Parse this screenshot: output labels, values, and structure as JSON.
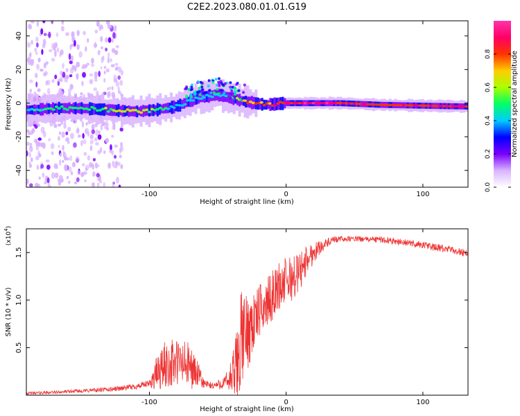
{
  "title": "C2E2.2023.080.01.01.G19",
  "chart_data": [
    {
      "type": "heatmap",
      "xlabel": "Height of straight line (km)",
      "ylabel": "Frequency (Hz)",
      "xlim": [
        -190,
        133
      ],
      "ylim": [
        -50,
        49
      ],
      "xticks": [
        -100,
        0,
        100
      ],
      "yticks": [
        -40,
        -20,
        0,
        20,
        40
      ],
      "colorbar": {
        "label": "Normalized spectral amplitude",
        "range": [
          0,
          1
        ],
        "ticks": [
          0.0,
          0.2,
          0.4,
          0.6,
          0.8
        ],
        "colors": [
          "#ffffff",
          "#d9b3ff",
          "#7a00ff",
          "#0000ff",
          "#00ccff",
          "#00ff66",
          "#aaff00",
          "#ffcc00",
          "#ff3300",
          "#ff0066",
          "#ff33aa"
        ]
      },
      "ridge": [
        {
          "x": -185,
          "y": -4,
          "amp": 0.45
        },
        {
          "x": -170,
          "y": -3,
          "amp": 0.55
        },
        {
          "x": -150,
          "y": -3,
          "amp": 0.5
        },
        {
          "x": -130,
          "y": -4,
          "amp": 0.6
        },
        {
          "x": -110,
          "y": -5,
          "amp": 0.75
        },
        {
          "x": -95,
          "y": -4,
          "amp": 0.55
        },
        {
          "x": -80,
          "y": -2,
          "amp": 0.45
        },
        {
          "x": -65,
          "y": 3,
          "amp": 0.4
        },
        {
          "x": -50,
          "y": 5,
          "amp": 0.45
        },
        {
          "x": -40,
          "y": 3,
          "amp": 0.5
        },
        {
          "x": -30,
          "y": 1,
          "amp": 0.8
        },
        {
          "x": -15,
          "y": -1,
          "amp": 0.85
        },
        {
          "x": 0,
          "y": 0,
          "amp": 0.9
        },
        {
          "x": 15,
          "y": 0,
          "amp": 1.0
        },
        {
          "x": 40,
          "y": 0,
          "amp": 0.95
        },
        {
          "x": 70,
          "y": -1,
          "amp": 0.85
        },
        {
          "x": 100,
          "y": -1.5,
          "amp": 0.9
        },
        {
          "x": 133,
          "y": -2,
          "amp": 0.95
        }
      ]
    },
    {
      "type": "line",
      "xlabel": "Height of straight line (km)",
      "ylabel": "SNR (10 * v/v)",
      "scale_label": "(x10",
      "scale_exp": "4",
      "scale_close": ")",
      "xlim": [
        -190,
        133
      ],
      "ylim": [
        0,
        17500
      ],
      "xticks": [
        -100,
        0,
        100
      ],
      "yticks": [
        5000,
        10000,
        15000
      ],
      "ytick_labels": [
        "0.5",
        "1.0",
        "1.5"
      ],
      "line_color": "#ee3333",
      "series": [
        {
          "x": [
            -190,
            -170,
            -150,
            -130,
            -110,
            -100,
            -95,
            -90,
            -85,
            -80,
            -75,
            -70,
            -65,
            -60,
            -55,
            -50,
            -45,
            -40,
            -38,
            -35,
            -33,
            -30,
            -28,
            -25,
            -22,
            -20,
            -15,
            -10,
            -5,
            0,
            5,
            10,
            15,
            20,
            25,
            30,
            35,
            40,
            45,
            50,
            60,
            70,
            80,
            90,
            100,
            110,
            120,
            133
          ],
          "values": [
            200,
            300,
            450,
            600,
            900,
            1200,
            2200,
            3000,
            3300,
            3400,
            3300,
            3000,
            2200,
            1200,
            1000,
            1100,
            1300,
            1800,
            2300,
            3600,
            6000,
            6300,
            6800,
            7500,
            8000,
            8800,
            9500,
            10500,
            11500,
            12000,
            12300,
            13000,
            14200,
            15000,
            15600,
            16000,
            16300,
            16450,
            16450,
            16450,
            16400,
            16350,
            16200,
            16000,
            15800,
            15500,
            15300,
            14900
          ],
          "noise": [
            150,
            150,
            200,
            250,
            300,
            400,
            1800,
            2500,
            2600,
            2700,
            2600,
            2400,
            1500,
            500,
            400,
            500,
            700,
            2000,
            3200,
            5000,
            5000,
            4500,
            4000,
            3800,
            3000,
            2800,
            2600,
            2600,
            2600,
            2600,
            2400,
            2200,
            1600,
            1200,
            700,
            500,
            400,
            300,
            300,
            300,
            300,
            350,
            350,
            350,
            400,
            400,
            400,
            450
          ]
        }
      ]
    }
  ]
}
